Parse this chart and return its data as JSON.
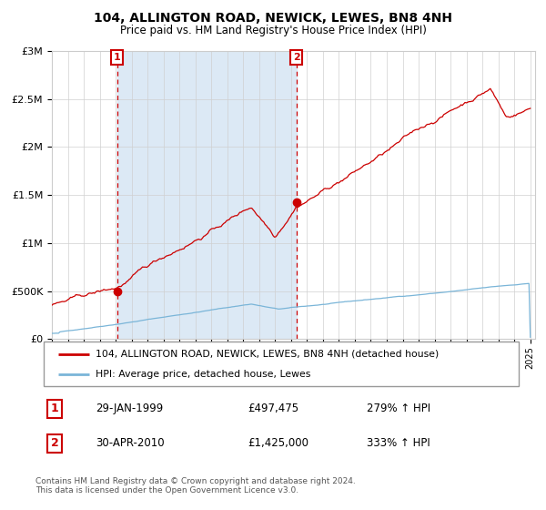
{
  "title": "104, ALLINGTON ROAD, NEWICK, LEWES, BN8 4NH",
  "subtitle": "Price paid vs. HM Land Registry's House Price Index (HPI)",
  "legend_line1": "104, ALLINGTON ROAD, NEWICK, LEWES, BN8 4NH (detached house)",
  "legend_line2": "HPI: Average price, detached house, Lewes",
  "annotation1_date": "29-JAN-1999",
  "annotation1_price": "£497,475",
  "annotation1_hpi": "279% ↑ HPI",
  "annotation2_date": "30-APR-2010",
  "annotation2_price": "£1,425,000",
  "annotation2_hpi": "333% ↑ HPI",
  "footer": "Contains HM Land Registry data © Crown copyright and database right 2024.\nThis data is licensed under the Open Government Licence v3.0.",
  "hpi_color": "#7ab5d8",
  "price_color": "#cc0000",
  "marker_color": "#cc0000",
  "shade_color": "#dce9f5",
  "annotation_box_color": "#cc0000",
  "background_color": "#ffffff",
  "ylim": [
    0,
    3000000
  ],
  "year_start": 1995,
  "year_end": 2025,
  "sale1_year": 1999.08,
  "sale1_price": 497475,
  "sale2_year": 2010.33,
  "sale2_price": 1425000
}
